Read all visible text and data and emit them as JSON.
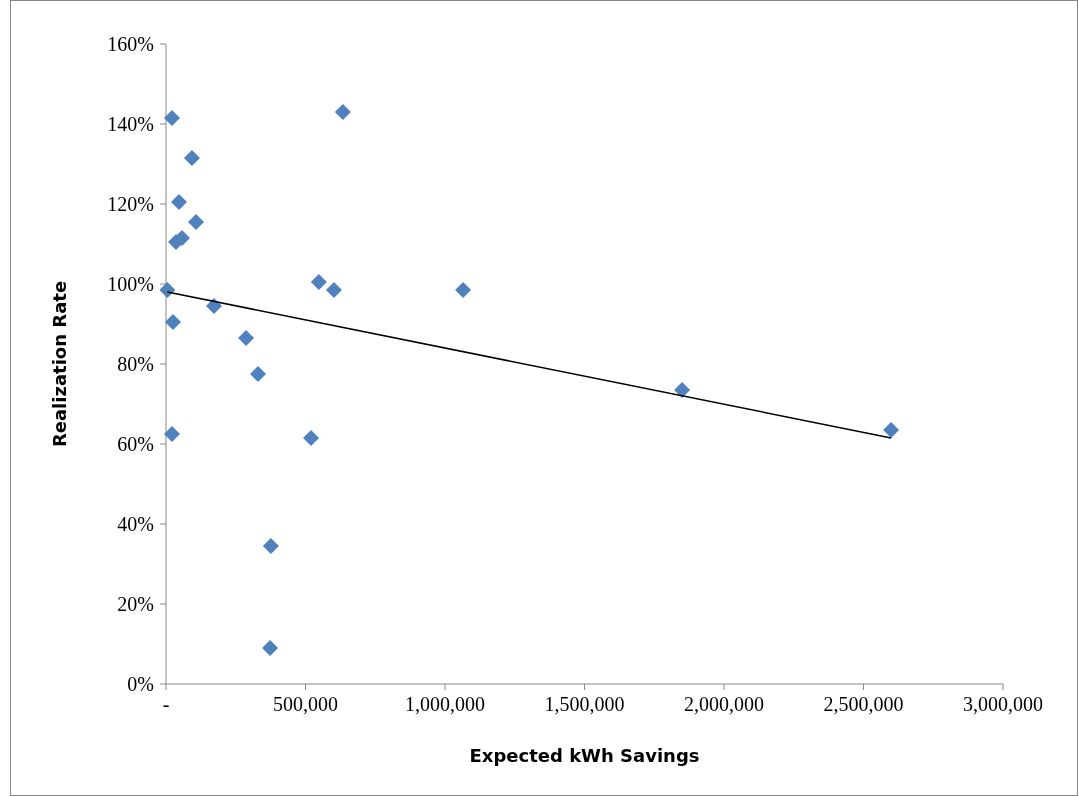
{
  "chart_data": {
    "type": "scatter",
    "xlabel": "Expected kWh Savings",
    "ylabel": "Realization Rate",
    "xlim": [
      0,
      3000000
    ],
    "xticks": [
      {
        "value": 0,
        "label": "-"
      },
      {
        "value": 500000,
        "label": "500,000"
      },
      {
        "value": 1000000,
        "label": "1,000,000"
      },
      {
        "value": 1500000,
        "label": "1,500,000"
      },
      {
        "value": 2000000,
        "label": "2,000,000"
      },
      {
        "value": 2500000,
        "label": "2,500,000"
      },
      {
        "value": 3000000,
        "label": "3,000,000"
      }
    ],
    "ylim": [
      0,
      160
    ],
    "yticks": [
      {
        "value": 0,
        "label": "0%"
      },
      {
        "value": 20,
        "label": "20%"
      },
      {
        "value": 40,
        "label": "40%"
      },
      {
        "value": 60,
        "label": "60%"
      },
      {
        "value": 80,
        "label": "80%"
      },
      {
        "value": 100,
        "label": "100%"
      },
      {
        "value": 120,
        "label": "120%"
      },
      {
        "value": 140,
        "label": "140%"
      },
      {
        "value": 160,
        "label": "160%"
      }
    ],
    "grid": false,
    "series": [
      {
        "color": "#4f81bd",
        "marker": "diamond",
        "x": [
          5000,
          21500,
          93000,
          46600,
          107500,
          57300,
          35800,
          25000,
          21500,
          172000,
          287000,
          330000,
          376000,
          373000,
          520000,
          548000,
          602000,
          634000,
          1065000,
          1850000,
          2599000
        ],
        "values": [
          98.5,
          141.5,
          131.5,
          120.5,
          115.5,
          111.5,
          110.5,
          90.5,
          62.5,
          94.5,
          86.5,
          77.5,
          34.5,
          9,
          61.5,
          100.5,
          98.5,
          143,
          98.5,
          73.5,
          63.5
        ]
      },
      {
        "type": "line",
        "color": "#000000",
        "marker": "none",
        "line_style": "solid",
        "x": [
          5000,
          2599000
        ],
        "values": [
          98,
          61.5
        ]
      }
    ]
  }
}
